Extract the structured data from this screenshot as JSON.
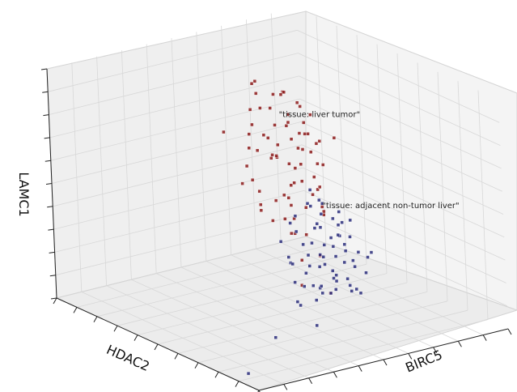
{
  "chart_data": {
    "type": "scatter",
    "projection": "3d",
    "title": "",
    "xlabel": "BIRC5",
    "ylabel": "HDAC2",
    "zlabel": "LAMC1",
    "grid": true,
    "legend": "none",
    "xlim": [
      0,
      10
    ],
    "ylim": [
      0,
      10
    ],
    "zlim": [
      0,
      10
    ],
    "series": [
      {
        "name": "\"tissue: liver tumor\"",
        "color": "#8b1a1a",
        "points": [
          [
            2.2,
            6.5,
            8.6
          ],
          [
            2.8,
            5.9,
            8.9
          ],
          [
            3.1,
            6.8,
            8.3
          ],
          [
            2.5,
            7.4,
            8.0
          ],
          [
            3.6,
            6.1,
            8.7
          ],
          [
            1.8,
            7.9,
            7.6
          ],
          [
            2.4,
            6.9,
            7.4
          ],
          [
            3.3,
            5.4,
            8.1
          ],
          [
            2.9,
            7.2,
            6.9
          ],
          [
            3.8,
            6.5,
            7.8
          ],
          [
            2.0,
            8.3,
            7.1
          ],
          [
            2.6,
            6.0,
            7.0
          ],
          [
            3.4,
            7.7,
            7.3
          ],
          [
            4.0,
            5.8,
            7.6
          ],
          [
            1.5,
            8.8,
            6.6
          ],
          [
            2.3,
            7.6,
            6.4
          ],
          [
            3.0,
            6.3,
            6.5
          ],
          [
            3.7,
            7.0,
            6.8
          ],
          [
            2.7,
            8.0,
            6.1
          ],
          [
            4.3,
            6.2,
            7.0
          ],
          [
            1.9,
            7.0,
            6.0
          ],
          [
            3.2,
            5.7,
            6.2
          ],
          [
            3.9,
            7.5,
            6.3
          ],
          [
            2.1,
            8.6,
            5.7
          ],
          [
            2.8,
            6.6,
            5.6
          ],
          [
            3.5,
            6.0,
            5.9
          ],
          [
            4.4,
            5.5,
            6.5
          ],
          [
            1.7,
            7.7,
            5.3
          ],
          [
            2.4,
            7.1,
            5.2
          ],
          [
            3.1,
            7.9,
            5.5
          ],
          [
            3.8,
            6.7,
            5.4
          ],
          [
            4.6,
            6.3,
            6.0
          ],
          [
            2.0,
            6.2,
            4.9
          ],
          [
            2.9,
            8.3,
            4.8
          ],
          [
            3.4,
            5.3,
            5.1
          ],
          [
            4.1,
            7.2,
            5.0
          ],
          [
            2.5,
            5.6,
            4.5
          ],
          [
            3.3,
            6.9,
            4.4
          ],
          [
            4.2,
            5.9,
            4.6
          ],
          [
            1.6,
            8.2,
            4.3
          ],
          [
            2.7,
            7.5,
            4.1
          ],
          [
            3.6,
            7.8,
            4.2
          ],
          [
            4.5,
            6.8,
            4.5
          ],
          [
            2.2,
            6.5,
            3.8
          ],
          [
            3.0,
            5.9,
            3.7
          ],
          [
            3.9,
            6.4,
            3.9
          ],
          [
            4.8,
            5.6,
            4.8
          ],
          [
            2.6,
            8.5,
            3.5
          ],
          [
            3.5,
            7.3,
            3.4
          ],
          [
            4.4,
            6.1,
            3.6
          ],
          [
            2.0,
            7.3,
            3.1
          ],
          [
            3.2,
            6.2,
            3.0
          ],
          [
            4.0,
            7.6,
            3.2
          ],
          [
            1.4,
            9.0,
            5.8
          ],
          [
            5.0,
            6.0,
            5.5
          ],
          [
            5.2,
            6.6,
            4.3
          ],
          [
            2.3,
            5.1,
            6.8
          ],
          [
            3.7,
            5.0,
            7.3
          ],
          [
            4.7,
            7.1,
            5.8
          ],
          [
            2.1,
            6.6,
            8.0
          ],
          [
            3.3,
            8.1,
            6.0
          ],
          [
            1.8,
            8.6,
            4.9
          ],
          [
            4.9,
            6.9,
            3.9
          ],
          [
            3.9,
            5.2,
            4.0
          ],
          [
            2.8,
            7.0,
            2.7
          ],
          [
            3.6,
            6.6,
            2.5
          ],
          [
            4.6,
            6.4,
            2.9
          ],
          [
            5.3,
            5.4,
            3.5
          ],
          [
            2.4,
            6.0,
            5.9
          ],
          [
            3.1,
            7.4,
            5.8
          ],
          [
            5.5,
            6.2,
            2.4
          ],
          [
            4.2,
            6.5,
            1.6
          ],
          [
            5.8,
            5.2,
            1.5
          ],
          [
            6.2,
            6.0,
            1.1
          ],
          [
            1.9,
            6.9,
            7.2
          ],
          [
            4.3,
            7.9,
            6.6
          ]
        ]
      },
      {
        "name": "\"tissue: adjacent non-tumor liver\"",
        "color": "#2a2d7a",
        "points": [
          [
            6.4,
            5.2,
            5.9
          ],
          [
            6.9,
            4.8,
            5.5
          ],
          [
            7.3,
            5.6,
            5.2
          ],
          [
            6.1,
            5.9,
            5.0
          ],
          [
            7.8,
            4.5,
            5.6
          ],
          [
            6.6,
            4.2,
            4.8
          ],
          [
            7.1,
            5.0,
            4.6
          ],
          [
            7.6,
            5.8,
            4.9
          ],
          [
            8.1,
            4.9,
            4.7
          ],
          [
            6.3,
            5.5,
            4.3
          ],
          [
            6.8,
            6.1,
            4.4
          ],
          [
            7.4,
            4.4,
            4.2
          ],
          [
            7.9,
            5.3,
            4.1
          ],
          [
            8.4,
            4.1,
            4.6
          ],
          [
            6.0,
            4.9,
            4.0
          ],
          [
            6.7,
            4.6,
            3.8
          ],
          [
            7.2,
            5.4,
            3.7
          ],
          [
            7.7,
            4.0,
            3.9
          ],
          [
            8.2,
            5.6,
            3.8
          ],
          [
            8.7,
            4.7,
            4.3
          ],
          [
            6.4,
            6.3,
            3.6
          ],
          [
            6.9,
            5.1,
            3.3
          ],
          [
            7.5,
            4.8,
            3.2
          ],
          [
            8.0,
            3.8,
            3.6
          ],
          [
            8.5,
            5.2,
            3.4
          ],
          [
            9.0,
            4.4,
            4.0
          ],
          [
            6.2,
            4.4,
            3.1
          ],
          [
            6.8,
            5.8,
            3.0
          ],
          [
            7.3,
            4.2,
            2.9
          ],
          [
            7.8,
            5.0,
            2.8
          ],
          [
            8.3,
            4.5,
            3.0
          ],
          [
            8.8,
            5.4,
            3.2
          ],
          [
            6.6,
            5.3,
            2.6
          ],
          [
            7.1,
            3.9,
            2.5
          ],
          [
            7.6,
            5.6,
            2.4
          ],
          [
            8.1,
            4.1,
            2.6
          ],
          [
            8.6,
            4.9,
            2.7
          ],
          [
            9.2,
            3.9,
            3.4
          ],
          [
            7.0,
            4.7,
            2.1
          ],
          [
            7.5,
            5.2,
            2.0
          ],
          [
            8.0,
            4.6,
            2.2
          ],
          [
            8.4,
            3.7,
            2.3
          ],
          [
            7.3,
            6.0,
            4.0
          ],
          [
            6.5,
            5.0,
            5.4
          ],
          [
            7.7,
            4.3,
            5.0
          ],
          [
            8.9,
            4.0,
            3.7
          ],
          [
            6.1,
            6.5,
            3.9
          ],
          [
            9.3,
            4.6,
            2.9
          ],
          [
            7.4,
            3.6,
            3.5
          ],
          [
            8.6,
            5.8,
            3.9
          ],
          [
            6.3,
            5.7,
            2.8
          ],
          [
            7.9,
            6.2,
            3.3
          ],
          [
            8.2,
            3.4,
            2.9
          ],
          [
            7.0,
            4.1,
            5.3
          ],
          [
            6.8,
            4.0,
            3.2
          ],
          [
            8.5,
            4.3,
            4.9
          ],
          [
            7.7,
            3.5,
            2.0
          ],
          [
            6.9,
            6.4,
            2.7
          ],
          [
            9.0,
            5.0,
            2.5
          ],
          [
            7.2,
            4.9,
            1.8
          ],
          [
            7.6,
            4.6,
            6.1
          ],
          [
            8.0,
            4.8,
            5.4
          ],
          [
            6.6,
            3.8,
            4.1
          ],
          [
            8.8,
            3.6,
            3.1
          ],
          [
            7.4,
            5.9,
            1.7
          ],
          [
            6.7,
            4.4,
            1.2
          ],
          [
            7.1,
            4.7,
            0.4
          ],
          [
            6.9,
            3.2,
            0.2
          ],
          [
            5.7,
            3.0,
            -1.8
          ]
        ]
      }
    ],
    "annotations": [
      {
        "text": "\"tissue: liver tumor\"",
        "at": [
          2.7,
          7.0,
          7.1
        ]
      },
      {
        "text": "\"tissue: adjacent non-tumor liver\"",
        "at": [
          6.6,
          5.5,
          5.1
        ]
      }
    ]
  }
}
